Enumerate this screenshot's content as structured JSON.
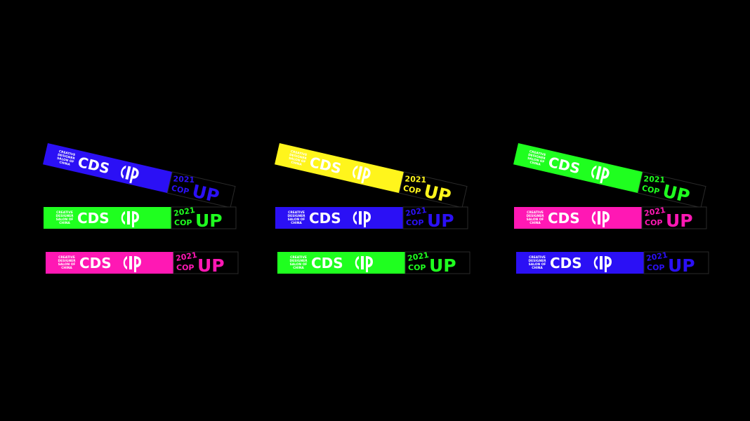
{
  "brand": {
    "tagline": [
      "CREATIVE",
      "DESIGNER",
      "SALON OF",
      "CHINA"
    ],
    "name": "CDS",
    "year": "2021",
    "cop": "COP",
    "up": "UP"
  },
  "bands": [
    {
      "color": "#2b10f5"
    },
    {
      "color": "#1fff1f"
    },
    {
      "color": "#ff18b4"
    },
    {
      "color": "#fff51c"
    },
    {
      "color": "#2b10f5"
    },
    {
      "color": "#1fff1f"
    },
    {
      "color": "#1fff1f"
    },
    {
      "color": "#ff18b4"
    },
    {
      "color": "#2b10f5"
    }
  ]
}
